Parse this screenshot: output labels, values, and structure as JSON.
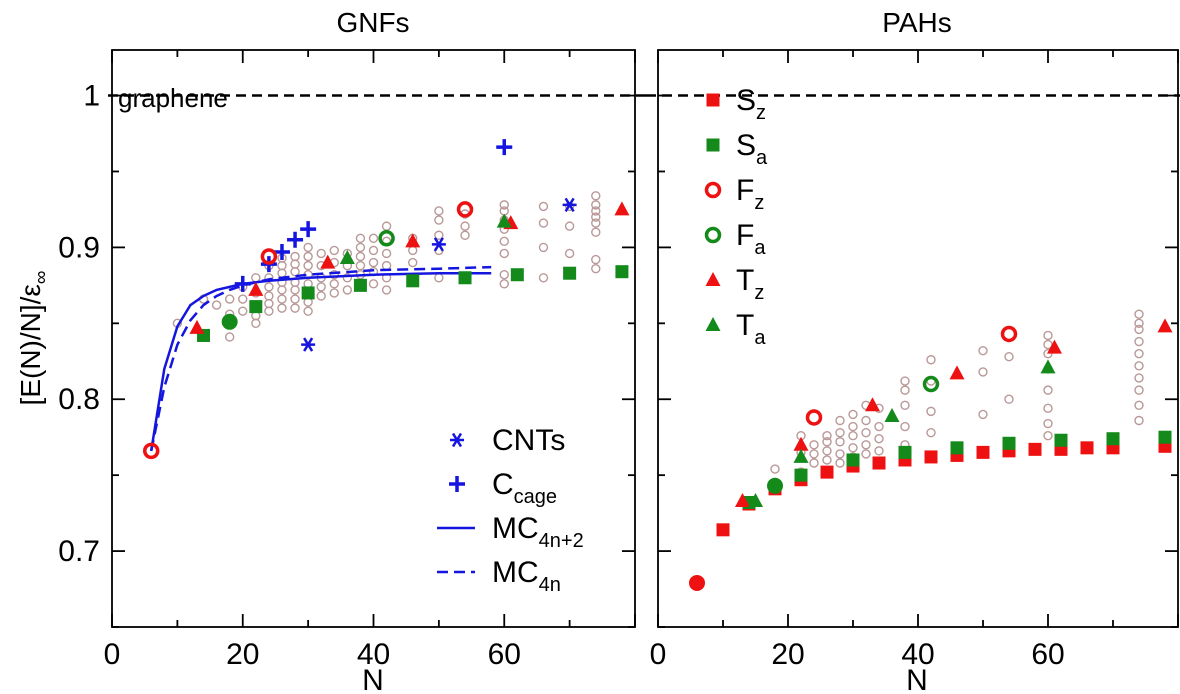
{
  "panels": {
    "left_title": "GNFs",
    "right_title": "PAHs",
    "ylabel": "[E(N)/N]/ε",
    "ylabel_sub": "∞",
    "xlabel": "N",
    "graphene_label": "graphene"
  },
  "colors": {
    "red": "#ee1111",
    "green": "#138a1a",
    "blue": "#1515e0",
    "gray": "#b99898",
    "black": "#000000"
  },
  "chart_data": [
    {
      "type": "scatter",
      "title": "GNFs",
      "xlabel": "N",
      "ylabel": "[E(N)/N]/ε∞",
      "xlim": [
        0,
        80
      ],
      "ylim": [
        0.65,
        1.03
      ],
      "xticks": [
        "0",
        "20",
        "40",
        "60"
      ],
      "yticks": [
        "0.7",
        "0.8",
        "0.9",
        "1"
      ],
      "reference_line": {
        "label": "graphene",
        "y": 1.0,
        "style": "dashed"
      },
      "legend": {
        "position": "bottom-center",
        "entries": [
          {
            "key": "cnts",
            "label": "CNTs"
          },
          {
            "key": "ccage",
            "label": "C",
            "sub": "cage"
          },
          {
            "key": "mc4n2",
            "label": "MC",
            "sub": "4n+2"
          },
          {
            "key": "mc4n",
            "label": "MC",
            "sub": "4n"
          }
        ]
      },
      "series": [
        {
          "name": "CNTs",
          "marker": "asterisk",
          "color": "blue",
          "x": [
            30,
            50,
            70
          ],
          "y": [
            0.836,
            0.902,
            0.928
          ]
        },
        {
          "name": "C_cage",
          "marker": "plus",
          "color": "blue",
          "x": [
            20,
            24,
            26,
            28,
            30,
            60
          ],
          "y": [
            0.876,
            0.889,
            0.897,
            0.905,
            0.912,
            0.966
          ]
        },
        {
          "name": "MC_4n+2",
          "marker": "line-solid",
          "color": "blue",
          "x": [
            6,
            8,
            10,
            12,
            14,
            16,
            18,
            20,
            24,
            30,
            40,
            50,
            58
          ],
          "y": [
            0.766,
            0.82,
            0.848,
            0.862,
            0.868,
            0.872,
            0.874,
            0.876,
            0.878,
            0.88,
            0.882,
            0.883,
            0.883
          ]
        },
        {
          "name": "MC_4n",
          "marker": "line-dashed",
          "color": "blue",
          "x": [
            6,
            8,
            10,
            12,
            14,
            16,
            18,
            20,
            24,
            30,
            40,
            50,
            58
          ],
          "y": [
            0.766,
            0.808,
            0.836,
            0.852,
            0.862,
            0.868,
            0.872,
            0.875,
            0.879,
            0.882,
            0.885,
            0.886,
            0.887
          ]
        },
        {
          "name": "F_z",
          "marker": "ring",
          "color": "red",
          "x": [
            6,
            24,
            54
          ],
          "y": [
            0.766,
            0.894,
            0.925
          ]
        },
        {
          "name": "F_a",
          "marker": "ring",
          "color": "green",
          "x": [
            42
          ],
          "y": [
            0.906
          ]
        },
        {
          "name": "S_a",
          "marker": "square",
          "color": "green",
          "x": [
            14,
            22,
            30,
            38,
            46,
            54,
            62,
            70,
            78
          ],
          "y": [
            0.842,
            0.861,
            0.87,
            0.875,
            0.878,
            0.88,
            0.882,
            0.883,
            0.884
          ]
        },
        {
          "name": "circle_a",
          "marker": "filled-circle",
          "color": "green",
          "x": [
            18
          ],
          "y": [
            0.851
          ]
        },
        {
          "name": "T_z",
          "marker": "triangle",
          "color": "red",
          "x": [
            13,
            22,
            33,
            46,
            61,
            78
          ],
          "y": [
            0.847,
            0.872,
            0.89,
            0.904,
            0.916,
            0.925
          ]
        },
        {
          "name": "T_a",
          "marker": "triangle",
          "color": "green",
          "x": [
            36,
            60
          ],
          "y": [
            0.893,
            0.917
          ]
        },
        {
          "name": "isomers",
          "marker": "small-ring",
          "color": "gray",
          "x": [
            10,
            14,
            16,
            18,
            18,
            18,
            20,
            20,
            20,
            22,
            22,
            22,
            22,
            22,
            24,
            24,
            24,
            24,
            24,
            24,
            26,
            26,
            26,
            26,
            26,
            26,
            26,
            28,
            28,
            28,
            28,
            28,
            28,
            28,
            30,
            30,
            30,
            30,
            30,
            30,
            30,
            30,
            32,
            32,
            32,
            32,
            32,
            34,
            34,
            34,
            34,
            34,
            36,
            36,
            36,
            36,
            38,
            38,
            38,
            38,
            38,
            38,
            40,
            40,
            40,
            40,
            40,
            42,
            42,
            42,
            42,
            42,
            42,
            46,
            46,
            46,
            46,
            50,
            50,
            50,
            50,
            50,
            54,
            54,
            54,
            60,
            60,
            60,
            60,
            60,
            60,
            60,
            60,
            66,
            66,
            66,
            66,
            70,
            70,
            70,
            74,
            74,
            74,
            74,
            74,
            74,
            74,
            74
          ],
          "y": [
            0.85,
            0.866,
            0.862,
            0.841,
            0.856,
            0.866,
            0.858,
            0.866,
            0.874,
            0.85,
            0.855,
            0.862,
            0.87,
            0.88,
            0.858,
            0.863,
            0.868,
            0.874,
            0.88,
            0.888,
            0.86,
            0.866,
            0.872,
            0.877,
            0.883,
            0.888,
            0.893,
            0.86,
            0.866,
            0.872,
            0.877,
            0.884,
            0.889,
            0.894,
            0.858,
            0.864,
            0.87,
            0.876,
            0.882,
            0.888,
            0.894,
            0.9,
            0.868,
            0.874,
            0.88,
            0.888,
            0.896,
            0.87,
            0.876,
            0.882,
            0.89,
            0.898,
            0.872,
            0.88,
            0.888,
            0.896,
            0.876,
            0.882,
            0.888,
            0.894,
            0.9,
            0.906,
            0.876,
            0.884,
            0.89,
            0.898,
            0.906,
            0.872,
            0.88,
            0.888,
            0.896,
            0.904,
            0.914,
            0.88,
            0.89,
            0.898,
            0.906,
            0.88,
            0.898,
            0.908,
            0.918,
            0.924,
            0.908,
            0.914,
            0.922,
            0.876,
            0.882,
            0.896,
            0.904,
            0.912,
            0.918,
            0.924,
            0.928,
            0.88,
            0.9,
            0.916,
            0.927,
            0.896,
            0.914,
            0.927,
            0.886,
            0.892,
            0.91,
            0.916,
            0.92,
            0.924,
            0.928,
            0.934
          ]
        }
      ]
    },
    {
      "type": "scatter",
      "title": "PAHs",
      "xlabel": "N",
      "xlim": [
        0,
        80
      ],
      "ylim": [
        0.65,
        1.03
      ],
      "xticks": [
        "0",
        "20",
        "40",
        "60"
      ],
      "reference_line": {
        "y": 1.0,
        "style": "dashed"
      },
      "legend": {
        "position": "top-left",
        "entries": [
          {
            "key": "sz",
            "label": "S",
            "sub": "z"
          },
          {
            "key": "sa",
            "label": "S",
            "sub": "a"
          },
          {
            "key": "fz",
            "label": "F",
            "sub": "z"
          },
          {
            "key": "fa",
            "label": "F",
            "sub": "a"
          },
          {
            "key": "tz",
            "label": "T",
            "sub": "z"
          },
          {
            "key": "ta",
            "label": "T",
            "sub": "a"
          }
        ]
      },
      "series": [
        {
          "name": "S_z",
          "marker": "square",
          "color": "red",
          "x": [
            10,
            14,
            18,
            22,
            26,
            30,
            34,
            38,
            42,
            46,
            50,
            54,
            58,
            62,
            66,
            70,
            78
          ],
          "y": [
            0.714,
            0.731,
            0.741,
            0.747,
            0.752,
            0.756,
            0.758,
            0.76,
            0.762,
            0.763,
            0.765,
            0.766,
            0.767,
            0.767,
            0.768,
            0.768,
            0.769
          ]
        },
        {
          "name": "S_a",
          "marker": "square",
          "color": "green",
          "x": [
            14,
            22,
            30,
            38,
            46,
            54,
            62,
            70,
            78
          ],
          "y": [
            0.732,
            0.75,
            0.76,
            0.765,
            0.768,
            0.771,
            0.773,
            0.774,
            0.775
          ]
        },
        {
          "name": "F_z",
          "marker": "ring",
          "color": "red",
          "x": [
            24,
            54
          ],
          "y": [
            0.788,
            0.843
          ]
        },
        {
          "name": "F_a",
          "marker": "ring",
          "color": "green",
          "x": [
            42
          ],
          "y": [
            0.81
          ]
        },
        {
          "name": "circle_z",
          "marker": "filled-circle",
          "color": "red",
          "x": [
            6
          ],
          "y": [
            0.679
          ]
        },
        {
          "name": "circle_a",
          "marker": "filled-circle",
          "color": "green",
          "x": [
            18
          ],
          "y": [
            0.743
          ]
        },
        {
          "name": "T_z",
          "marker": "triangle",
          "color": "red",
          "x": [
            13,
            22,
            33,
            46,
            61,
            78
          ],
          "y": [
            0.733,
            0.77,
            0.796,
            0.817,
            0.834,
            0.848
          ]
        },
        {
          "name": "T_a",
          "marker": "triangle",
          "color": "green",
          "x": [
            15,
            22,
            36,
            60
          ],
          "y": [
            0.733,
            0.762,
            0.789,
            0.821
          ]
        },
        {
          "name": "isomers",
          "marker": "small-ring",
          "color": "gray",
          "x": [
            18,
            22,
            22,
            22,
            24,
            24,
            24,
            26,
            26,
            26,
            26,
            26,
            28,
            28,
            28,
            28,
            28,
            30,
            30,
            30,
            30,
            30,
            32,
            32,
            32,
            32,
            32,
            34,
            34,
            34,
            34,
            38,
            38,
            38,
            38,
            38,
            42,
            42,
            42,
            42,
            50,
            50,
            50,
            54,
            54,
            60,
            60,
            60,
            60,
            60,
            60,
            60,
            60,
            74,
            74,
            74,
            74,
            74,
            74,
            74,
            74,
            74,
            74
          ],
          "y": [
            0.754,
            0.752,
            0.765,
            0.776,
            0.758,
            0.764,
            0.77,
            0.752,
            0.76,
            0.766,
            0.772,
            0.776,
            0.758,
            0.764,
            0.772,
            0.778,
            0.786,
            0.762,
            0.768,
            0.776,
            0.782,
            0.79,
            0.764,
            0.77,
            0.778,
            0.786,
            0.796,
            0.766,
            0.774,
            0.782,
            0.794,
            0.77,
            0.782,
            0.796,
            0.806,
            0.812,
            0.778,
            0.792,
            0.812,
            0.826,
            0.79,
            0.818,
            0.832,
            0.8,
            0.828,
            0.776,
            0.784,
            0.794,
            0.806,
            0.82,
            0.83,
            0.836,
            0.842,
            0.786,
            0.796,
            0.806,
            0.814,
            0.822,
            0.83,
            0.838,
            0.846,
            0.85,
            0.856
          ]
        }
      ]
    }
  ]
}
